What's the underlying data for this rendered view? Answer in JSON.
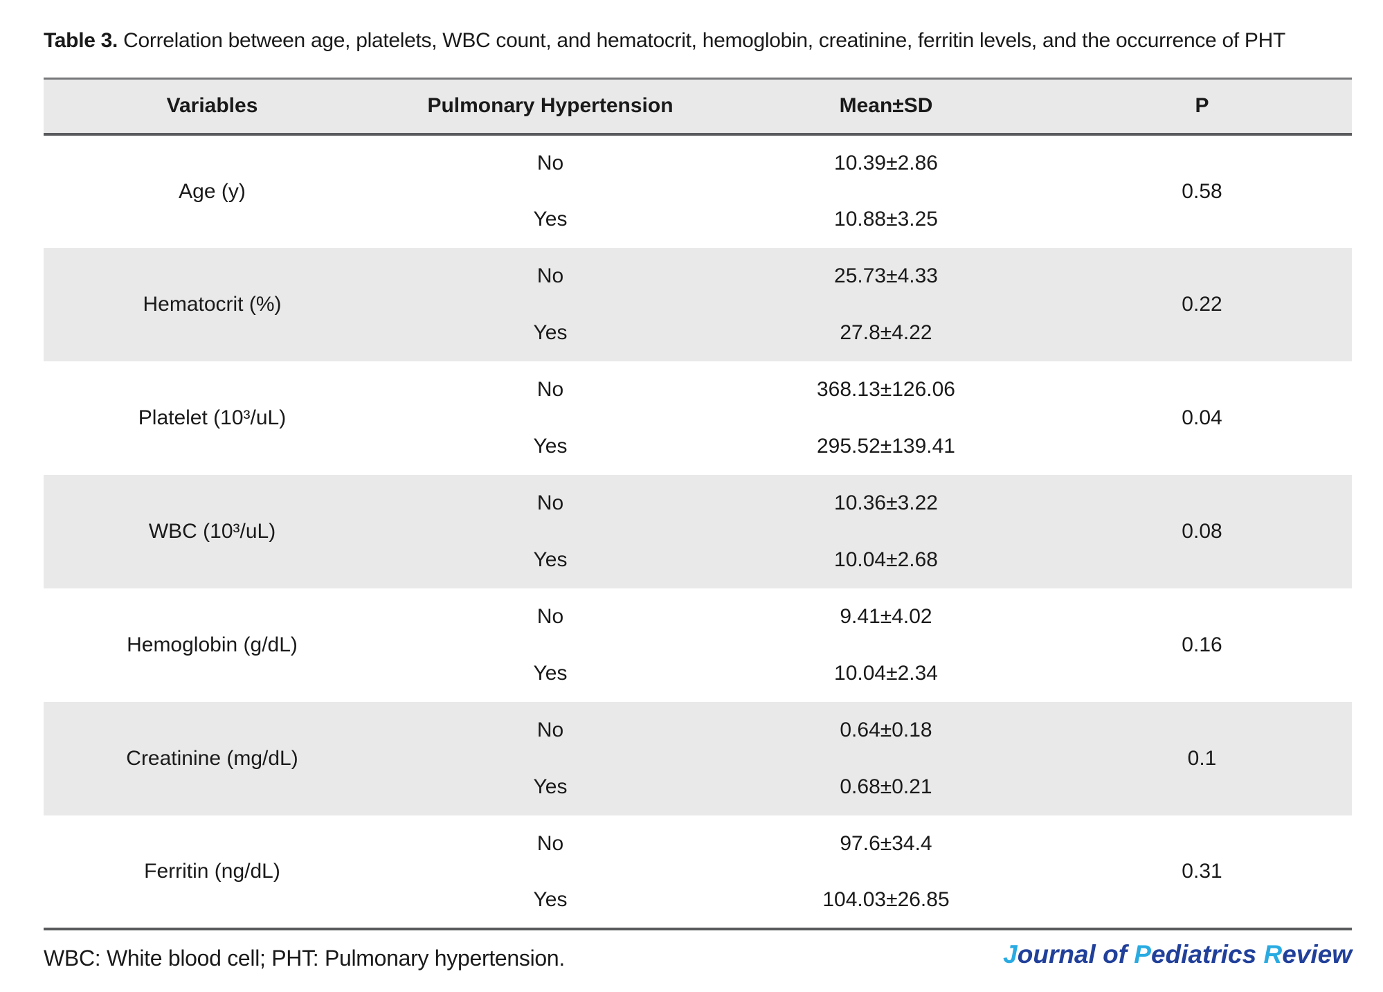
{
  "title": {
    "label": "Table 3.",
    "text": "Correlation between age, platelets, WBC count, and hematocrit, hemoglobin, creatinine, ferritin levels, and the occurrence of PHT"
  },
  "table": {
    "columns": [
      "Variables",
      "Pulmonary Hypertension",
      "Mean±SD",
      "P"
    ],
    "group_labels": {
      "no": "No",
      "yes": "Yes"
    },
    "rows": [
      {
        "variable": "Age (y)",
        "no_mean": "10.39±2.86",
        "yes_mean": "10.88±3.25",
        "p": "0.58"
      },
      {
        "variable": "Hematocrit (%)",
        "no_mean": "25.73±4.33",
        "yes_mean": "27.8±4.22",
        "p": "0.22"
      },
      {
        "variable": "Platelet (10³/uL)",
        "no_mean": "368.13±126.06",
        "yes_mean": "295.52±139.41",
        "p": "0.04"
      },
      {
        "variable": "WBC (10³/uL)",
        "no_mean": "10.36±3.22",
        "yes_mean": "10.04±2.68",
        "p": "0.08"
      },
      {
        "variable": "Hemoglobin (g/dL)",
        "no_mean": "9.41±4.02",
        "yes_mean": "10.04±2.34",
        "p": "0.16"
      },
      {
        "variable": "Creatinine (mg/dL)",
        "no_mean": "0.64±0.18",
        "yes_mean": "0.68±0.21",
        "p": "0.1"
      },
      {
        "variable": "Ferritin (ng/dL)",
        "no_mean": "97.6±34.4",
        "yes_mean": "104.03±26.85",
        "p": "0.31"
      }
    ]
  },
  "footer": {
    "note": "WBC: White blood cell; PHT: Pulmonary hypertension.",
    "logo": {
      "parts": [
        {
          "text": "J",
          "accent": true
        },
        {
          "text": "ournal of ",
          "accent": false
        },
        {
          "text": "P",
          "accent": true
        },
        {
          "text": "ediatrics ",
          "accent": false
        },
        {
          "text": "R",
          "accent": true
        },
        {
          "text": "eview",
          "accent": false
        }
      ]
    }
  },
  "colors": {
    "band": "#e9e9e9",
    "rule_top": "#77787a",
    "rule_heavy": "#595a5c",
    "text": "#1a1a1a",
    "logo_base": "#21409a",
    "logo_accent": "#29abe2"
  }
}
